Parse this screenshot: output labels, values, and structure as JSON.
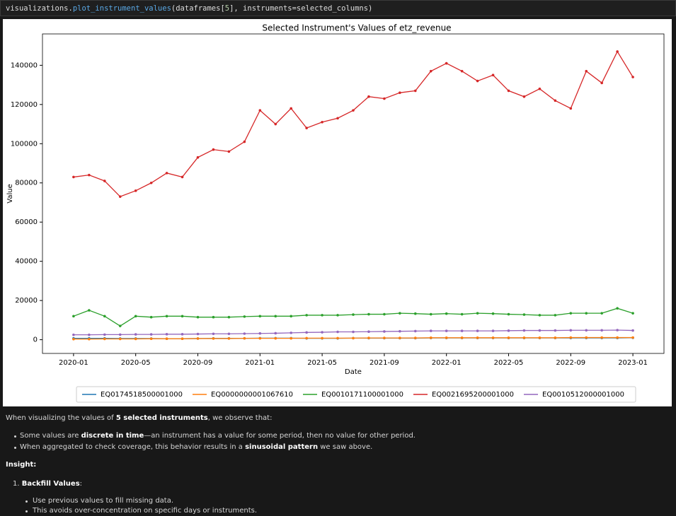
{
  "code": [
    "visualizations.",
    "plot_instrument_values",
    "(dataframes[",
    "5",
    "], instruments=selected_columns)"
  ],
  "chart_data": {
    "type": "line",
    "title": "Selected Instrument's Values of etz_revenue",
    "x_label": "Date",
    "y_label": "Value",
    "x": [
      "2020-01",
      "2020-02",
      "2020-03",
      "2020-04",
      "2020-05",
      "2020-06",
      "2020-07",
      "2020-08",
      "2020-09",
      "2020-10",
      "2020-11",
      "2020-12",
      "2021-01",
      "2021-02",
      "2021-03",
      "2021-04",
      "2021-05",
      "2021-06",
      "2021-07",
      "2021-08",
      "2021-09",
      "2021-10",
      "2021-11",
      "2021-12",
      "2022-01",
      "2022-02",
      "2022-03",
      "2022-04",
      "2022-05",
      "2022-06",
      "2022-07",
      "2022-08",
      "2022-09",
      "2022-10",
      "2022-11",
      "2022-12",
      "2023-01"
    ],
    "xlim": [
      "2019-11",
      "2023-03"
    ],
    "xticks": [
      "2020-01",
      "2020-05",
      "2020-09",
      "2021-01",
      "2021-05",
      "2021-09",
      "2022-01",
      "2022-05",
      "2022-09",
      "2023-01"
    ],
    "ylim": [
      -7000,
      156000
    ],
    "yticks": [
      0,
      20000,
      40000,
      60000,
      80000,
      100000,
      120000,
      140000
    ],
    "legend": "lower center",
    "series": [
      {
        "name": "EQ0174518500001000",
        "color": "#1f77b4",
        "values": [
          700,
          700,
          700,
          600,
          600,
          600,
          500,
          500,
          600,
          700,
          700,
          700,
          800,
          800,
          800,
          700,
          700,
          700,
          800,
          800,
          800,
          800,
          800,
          900,
          900,
          900,
          900,
          900,
          900,
          900,
          900,
          900,
          900,
          900,
          900,
          900,
          1000
        ]
      },
      {
        "name": "EQ0000000001067610",
        "color": "#ff7f0e",
        "values": [
          300,
          300,
          400,
          400,
          400,
          500,
          500,
          500,
          600,
          600,
          600,
          700,
          700,
          700,
          700,
          800,
          800,
          800,
          800,
          900,
          900,
          900,
          900,
          1000,
          1000,
          1000,
          1000,
          1000,
          1000,
          1000,
          1000,
          1000,
          1100,
          1100,
          1100,
          1100,
          1100
        ]
      },
      {
        "name": "EQ0010171100001000",
        "color": "#2ca02c",
        "values": [
          12000,
          15000,
          12000,
          7000,
          12000,
          11500,
          12000,
          12000,
          11500,
          11500,
          11500,
          11800,
          12000,
          12000,
          12000,
          12500,
          12500,
          12500,
          12800,
          13000,
          13000,
          13500,
          13300,
          13000,
          13300,
          13000,
          13500,
          13300,
          13000,
          12800,
          12500,
          12500,
          13500,
          13500,
          13500,
          16000,
          13500
        ]
      },
      {
        "name": "EQ0021695200001000",
        "color": "#d62728",
        "values": [
          83000,
          84000,
          81000,
          73000,
          76000,
          80000,
          85000,
          83000,
          93000,
          97000,
          96000,
          101000,
          117000,
          110000,
          118000,
          108000,
          111000,
          113000,
          117000,
          124000,
          123000,
          126000,
          127000,
          137000,
          141000,
          137000,
          132000,
          135000,
          127000,
          124000,
          128000,
          122000,
          118000,
          137000,
          131000,
          147000,
          134000
        ]
      },
      {
        "name": "EQ0010512000001000",
        "color": "#9467bd",
        "values": [
          2500,
          2500,
          2600,
          2600,
          2700,
          2700,
          2800,
          2800,
          2900,
          3000,
          3000,
          3100,
          3200,
          3300,
          3500,
          3700,
          3800,
          4000,
          4000,
          4100,
          4200,
          4300,
          4400,
          4500,
          4500,
          4500,
          4500,
          4500,
          4600,
          4700,
          4700,
          4700,
          4800,
          4800,
          4800,
          4900,
          4700
        ]
      }
    ]
  },
  "markdown": {
    "intro": [
      "When visualizing the values of ",
      "5 selected instruments",
      ", we observe that:"
    ],
    "bullets": [
      [
        "Some values are ",
        "discrete in time",
        "—an instrument has a value for some period, then no value for other period."
      ],
      [
        "When aggregated to check coverage, this behavior results in a ",
        "sinusoidal pattern",
        " we saw above."
      ]
    ],
    "insight": "Insight:",
    "item": [
      "Backfill Values",
      ":"
    ],
    "sub_bullets": [
      "Use previous values to fill missing data.",
      "This avoids over-concentration on specific days or instruments."
    ]
  }
}
